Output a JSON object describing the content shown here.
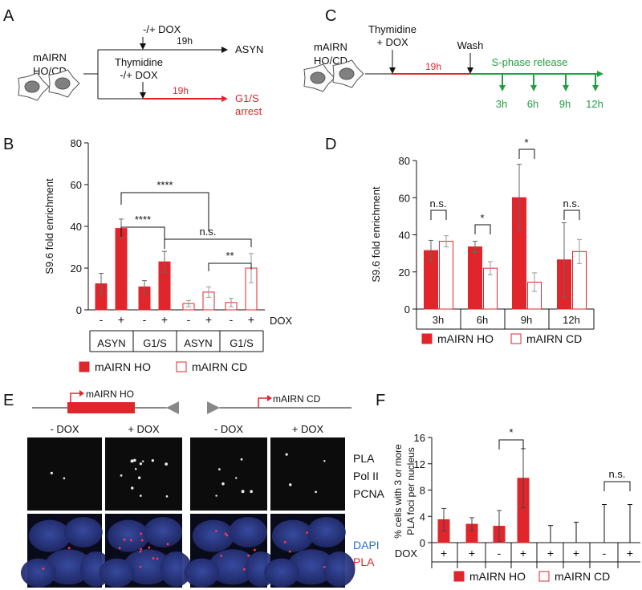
{
  "panels": {
    "A": {
      "letter": "A",
      "cells_label": [
        "mAIRN",
        "HO/CD"
      ],
      "top_treatment": "-/+ DOX",
      "top_time": "19h",
      "top_outcome": "ASYN",
      "bottom_treatment": [
        "Thymidine",
        "-/+ DOX"
      ],
      "bottom_time": "19h",
      "bottom_outcome": [
        "G1/S",
        "arrest"
      ]
    },
    "B": {
      "letter": "B"
    },
    "C": {
      "letter": "C",
      "cells_label": [
        "mAIRN",
        "HO/CD"
      ],
      "treatment": [
        "Thymidine",
        "+ DOX"
      ],
      "arrest_time": "19h",
      "wash": "Wash",
      "release": "S-phase release",
      "timepoints": [
        "3h",
        "6h",
        "9h",
        "12h"
      ]
    },
    "D": {
      "letter": "D"
    },
    "E": {
      "letter": "E",
      "construct_ho": "mAIRN HO",
      "construct_cd": "mAIRN CD",
      "col_labels": [
        "- DOX",
        "+ DOX",
        "- DOX",
        "+ DOX"
      ],
      "row1_label": [
        "PLA",
        "Pol II",
        "PCNA"
      ],
      "row2_label_dapi": "DAPI",
      "row2_label_pla": "PLA"
    },
    "F": {
      "letter": "F"
    }
  },
  "colors": {
    "red": "#e0262b",
    "green": "#1fa040",
    "blue": "#2a6fc4",
    "dapi": "#2a3a8c"
  },
  "chart_data": [
    {
      "panel": "B",
      "type": "bar",
      "ylabel": "S9.6 fold enrichment",
      "ylim": [
        0,
        80
      ],
      "yticks": [
        0,
        20,
        40,
        60,
        80
      ],
      "dox_label": "DOX",
      "dox": [
        "-",
        "+",
        "-",
        "+",
        "-",
        "+",
        "-",
        "+"
      ],
      "groups": [
        "ASYN",
        "G1/S",
        "ASYN",
        "G1/S"
      ],
      "series": [
        {
          "name": "mAIRN HO",
          "style": "filled",
          "values": [
            12.5,
            39,
            11,
            23
          ],
          "errors": [
            5,
            4.5,
            3,
            5
          ]
        },
        {
          "name": "mAIRN CD",
          "style": "open",
          "values": [
            3,
            8.5,
            3.5,
            20
          ],
          "errors": [
            1.5,
            2.5,
            2,
            7
          ]
        }
      ],
      "significance": [
        {
          "label": "****",
          "from_bar": 1,
          "to_bar": 5
        },
        {
          "label": "****",
          "from_bar": 1,
          "to_bar": 3
        },
        {
          "label": "n.s.",
          "from_bar": 3,
          "to_bar": 7
        },
        {
          "label": "**",
          "from_bar": 5,
          "to_bar": 7
        }
      ]
    },
    {
      "panel": "D",
      "type": "bar",
      "ylabel": "S9.6 fold enrichment",
      "ylim": [
        0,
        80
      ],
      "yticks": [
        0,
        20,
        40,
        60,
        80
      ],
      "categories": [
        "3h",
        "6h",
        "9h",
        "12h"
      ],
      "series": [
        {
          "name": "mAIRN HO",
          "style": "filled",
          "values": [
            31.5,
            33.5,
            60,
            26.5
          ],
          "errors": [
            5.5,
            3,
            18,
            20
          ]
        },
        {
          "name": "mAIRN CD",
          "style": "open",
          "values": [
            36.5,
            22,
            14.5,
            31
          ],
          "errors": [
            3,
            3.5,
            5,
            6.5
          ]
        }
      ],
      "significance": [
        "n.s.",
        "*",
        "*",
        "n.s."
      ]
    },
    {
      "panel": "F",
      "type": "bar",
      "ylabel": [
        "% cells with 3 or more",
        "PLA foci per nucleus"
      ],
      "ylim": [
        0,
        16
      ],
      "yticks": [
        0,
        4,
        8,
        12,
        16
      ],
      "dox_label": "DOX",
      "dox": [
        "+",
        "+",
        "-",
        "+",
        "+",
        "+",
        "-",
        "+"
      ],
      "series": [
        {
          "name": "mAIRN HO",
          "style": "filled",
          "values": [
            3.5,
            2.8,
            2.5,
            9.8
          ],
          "errors": [
            1.7,
            1.0,
            2.4,
            4.5
          ]
        },
        {
          "name": "mAIRN CD",
          "style": "open",
          "values": [
            0,
            0,
            0,
            0
          ],
          "errors": [
            2.6,
            3.1,
            5.8,
            5.8
          ]
        }
      ],
      "significance": [
        {
          "label": "*",
          "from_bar": 2,
          "to_bar": 3
        },
        {
          "label": "n.s.",
          "from_bar": 6,
          "to_bar": 7
        }
      ]
    }
  ]
}
